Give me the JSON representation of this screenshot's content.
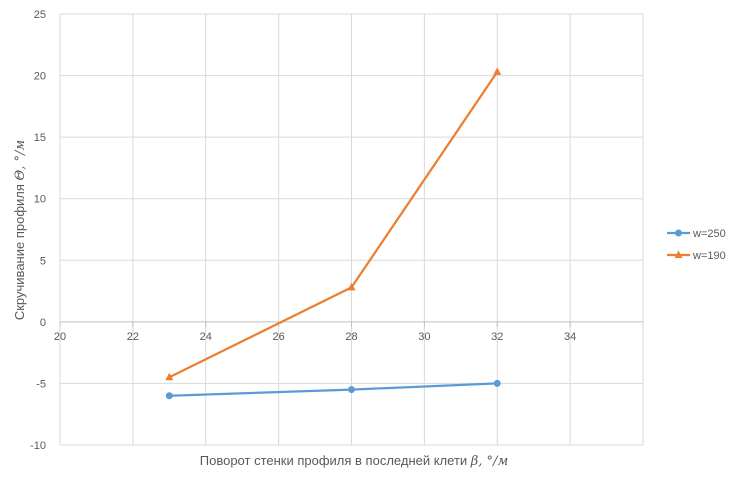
{
  "chart_data": {
    "type": "line",
    "title": "",
    "xlabel_text": "Поворот стенки профиля в последней клети ",
    "xlabel_symbol": "β",
    "xlabel_unit": ", °/м",
    "ylabel_text": "Скручивание профиля ",
    "ylabel_symbol": "Θ",
    "ylabel_unit": ", °/м",
    "xlim": [
      20,
      36
    ],
    "ylim": [
      -10,
      25
    ],
    "xticks": [
      20,
      22,
      24,
      26,
      28,
      30,
      32,
      34
    ],
    "yticks": [
      -10,
      -5,
      0,
      5,
      10,
      15,
      20,
      25
    ],
    "grid": true,
    "legend_position": "right",
    "series": [
      {
        "name": "w=250",
        "color": "#5b9bd5",
        "marker": "circle",
        "x": [
          23,
          28,
          32
        ],
        "y": [
          -6.0,
          -5.5,
          -5.0
        ]
      },
      {
        "name": "w=190",
        "color": "#ed7d31",
        "marker": "triangle",
        "x": [
          23,
          28,
          32
        ],
        "y": [
          -4.5,
          2.8,
          20.3
        ]
      }
    ]
  }
}
